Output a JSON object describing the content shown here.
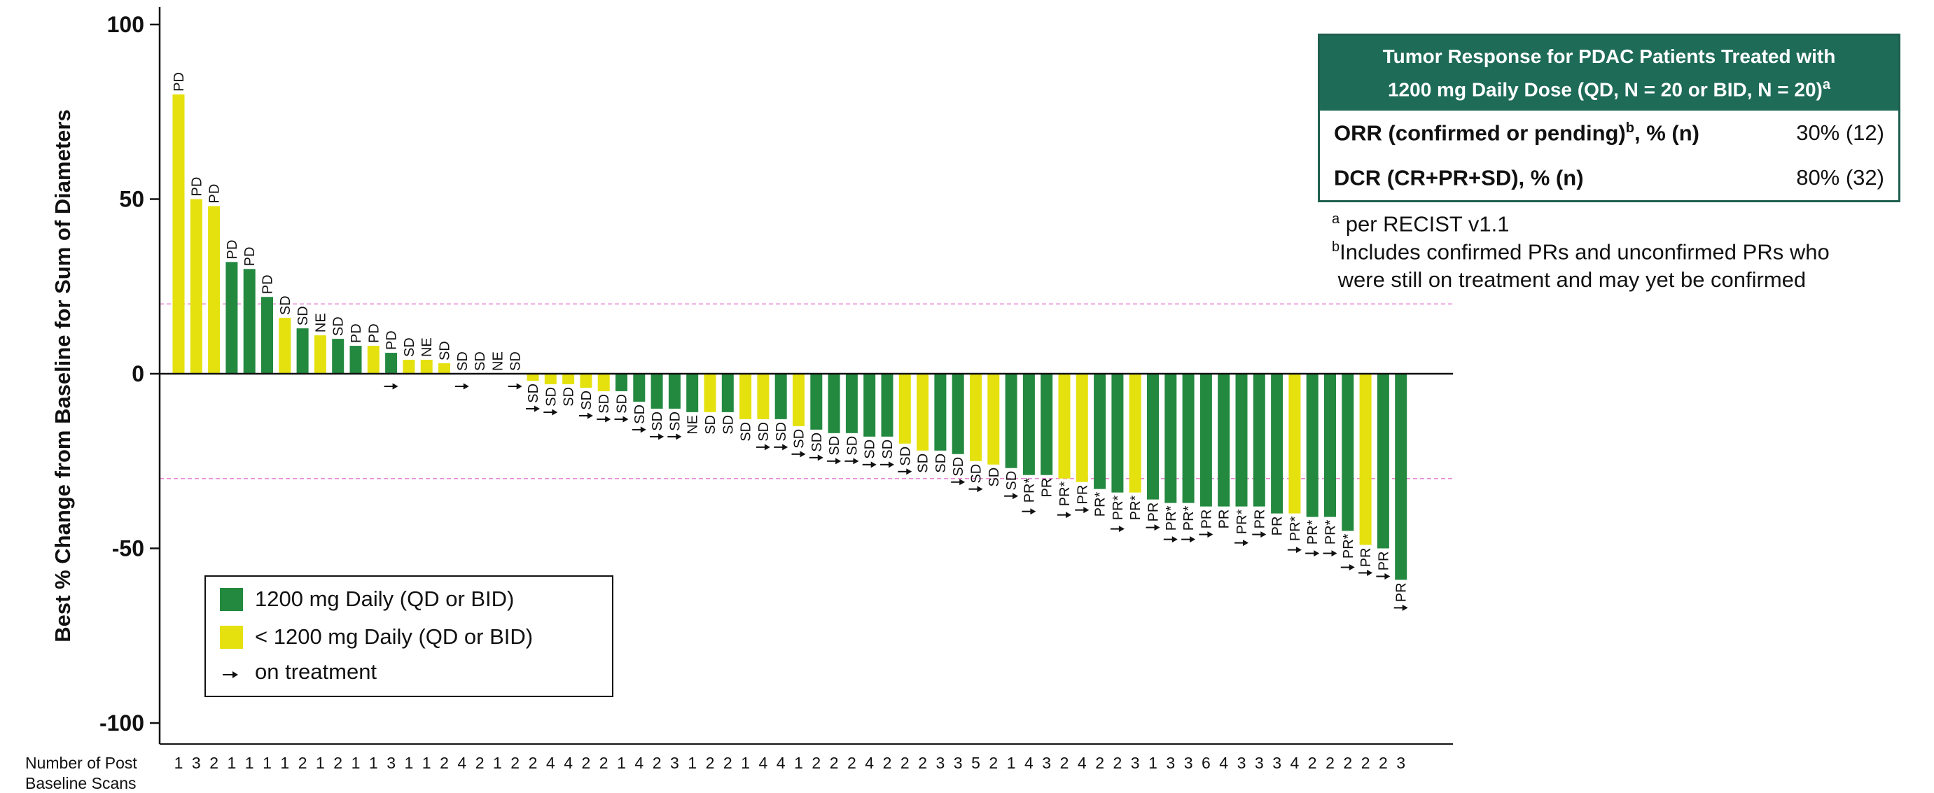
{
  "chart_data": {
    "type": "bar",
    "ylabel": "Best % Change from Baseline for Sum of Diameters",
    "ylim": [
      -100,
      100
    ],
    "yticks": [
      100,
      50,
      0,
      -50,
      -100
    ],
    "reference_lines": [
      20,
      -30
    ],
    "x_row_label_line1": "Number of Post",
    "x_row_label_line2": "Baseline Scans",
    "colors": {
      "group_1200": "#23893f",
      "group_lt1200": "#e5e10e",
      "ref_line": "#e98ad6"
    },
    "groups": {
      "g1200": "1200 mg Daily (QD or BID)",
      "glt1200": "< 1200 mg Daily (QD or BID)"
    },
    "legend": {
      "items": [
        {
          "key": "g1200",
          "label": "1200 mg Daily (QD or BID)"
        },
        {
          "key": "glt1200",
          "label": "< 1200 mg Daily (QD or BID)"
        },
        {
          "key": "arrow",
          "label": "on treatment"
        }
      ]
    },
    "bars": [
      {
        "value": 80,
        "group": "glt1200",
        "response": "PD",
        "scans": "1",
        "on_treatment": false
      },
      {
        "value": 50,
        "group": "glt1200",
        "response": "PD",
        "scans": "3",
        "on_treatment": false
      },
      {
        "value": 48,
        "group": "glt1200",
        "response": "PD",
        "scans": "2",
        "on_treatment": false
      },
      {
        "value": 32,
        "group": "g1200",
        "response": "PD",
        "scans": "1",
        "on_treatment": false
      },
      {
        "value": 30,
        "group": "g1200",
        "response": "PD",
        "scans": "1",
        "on_treatment": false
      },
      {
        "value": 22,
        "group": "g1200",
        "response": "PD",
        "scans": "1",
        "on_treatment": false
      },
      {
        "value": 16,
        "group": "glt1200",
        "response": "SD",
        "scans": "1",
        "on_treatment": false
      },
      {
        "value": 13,
        "group": "g1200",
        "response": "SD",
        "scans": "2",
        "on_treatment": false
      },
      {
        "value": 11,
        "group": "glt1200",
        "response": "NE",
        "scans": "1",
        "on_treatment": false
      },
      {
        "value": 10,
        "group": "g1200",
        "response": "SD",
        "scans": "2",
        "on_treatment": false
      },
      {
        "value": 8,
        "group": "g1200",
        "response": "PD",
        "scans": "1",
        "on_treatment": false
      },
      {
        "value": 8,
        "group": "glt1200",
        "response": "PD",
        "scans": "1",
        "on_treatment": false
      },
      {
        "value": 6,
        "group": "g1200",
        "response": "PD",
        "scans": "3",
        "on_treatment": true
      },
      {
        "value": 4,
        "group": "glt1200",
        "response": "SD",
        "scans": "1",
        "on_treatment": false
      },
      {
        "value": 4,
        "group": "glt1200",
        "response": "NE",
        "scans": "1",
        "on_treatment": false
      },
      {
        "value": 3,
        "group": "glt1200",
        "response": "SD",
        "scans": "2",
        "on_treatment": false
      },
      {
        "value": 0,
        "group": "glt1200",
        "response": "SD",
        "scans": "4",
        "on_treatment": true
      },
      {
        "value": 0,
        "group": "glt1200",
        "response": "SD",
        "scans": "2",
        "on_treatment": false
      },
      {
        "value": 0,
        "group": "glt1200",
        "response": "NE",
        "scans": "1",
        "on_treatment": false
      },
      {
        "value": 0,
        "group": "glt1200",
        "response": "SD",
        "scans": "2",
        "on_treatment": true
      },
      {
        "value": -2,
        "group": "glt1200",
        "response": "SD",
        "scans": "2",
        "on_treatment": true
      },
      {
        "value": -3,
        "group": "glt1200",
        "response": "SD",
        "scans": "4",
        "on_treatment": true
      },
      {
        "value": -3,
        "group": "glt1200",
        "response": "SD",
        "scans": "4",
        "on_treatment": false
      },
      {
        "value": -4,
        "group": "glt1200",
        "response": "SD",
        "scans": "2",
        "on_treatment": true
      },
      {
        "value": -5,
        "group": "glt1200",
        "response": "SD",
        "scans": "2",
        "on_treatment": true
      },
      {
        "value": -5,
        "group": "g1200",
        "response": "SD",
        "scans": "1",
        "on_treatment": true
      },
      {
        "value": -8,
        "group": "g1200",
        "response": "SD",
        "scans": "4",
        "on_treatment": true
      },
      {
        "value": -10,
        "group": "g1200",
        "response": "SD",
        "scans": "2",
        "on_treatment": true
      },
      {
        "value": -10,
        "group": "g1200",
        "response": "SD",
        "scans": "3",
        "on_treatment": true
      },
      {
        "value": -11,
        "group": "g1200",
        "response": "NE",
        "scans": "1",
        "on_treatment": false
      },
      {
        "value": -11,
        "group": "glt1200",
        "response": "SD",
        "scans": "2",
        "on_treatment": false
      },
      {
        "value": -11,
        "group": "g1200",
        "response": "SD",
        "scans": "2",
        "on_treatment": false
      },
      {
        "value": -13,
        "group": "glt1200",
        "response": "SD",
        "scans": "1",
        "on_treatment": false
      },
      {
        "value": -13,
        "group": "glt1200",
        "response": "SD",
        "scans": "4",
        "on_treatment": true
      },
      {
        "value": -13,
        "group": "g1200",
        "response": "SD",
        "scans": "4",
        "on_treatment": true
      },
      {
        "value": -15,
        "group": "glt1200",
        "response": "SD",
        "scans": "1",
        "on_treatment": true
      },
      {
        "value": -16,
        "group": "g1200",
        "response": "SD",
        "scans": "2",
        "on_treatment": true
      },
      {
        "value": -17,
        "group": "g1200",
        "response": "SD",
        "scans": "2",
        "on_treatment": true
      },
      {
        "value": -17,
        "group": "g1200",
        "response": "SD",
        "scans": "2",
        "on_treatment": true
      },
      {
        "value": -18,
        "group": "g1200",
        "response": "SD",
        "scans": "4",
        "on_treatment": true
      },
      {
        "value": -18,
        "group": "g1200",
        "response": "SD",
        "scans": "2",
        "on_treatment": true
      },
      {
        "value": -20,
        "group": "glt1200",
        "response": "SD",
        "scans": "2",
        "on_treatment": true
      },
      {
        "value": -22,
        "group": "glt1200",
        "response": "SD",
        "scans": "2",
        "on_treatment": false
      },
      {
        "value": -22,
        "group": "g1200",
        "response": "SD",
        "scans": "3",
        "on_treatment": false
      },
      {
        "value": -23,
        "group": "g1200",
        "response": "SD",
        "scans": "3",
        "on_treatment": true
      },
      {
        "value": -25,
        "group": "glt1200",
        "response": "SD",
        "scans": "5",
        "on_treatment": true
      },
      {
        "value": -26,
        "group": "glt1200",
        "response": "SD",
        "scans": "2",
        "on_treatment": false
      },
      {
        "value": -27,
        "group": "g1200",
        "response": "SD",
        "scans": "1",
        "on_treatment": true
      },
      {
        "value": -29,
        "group": "g1200",
        "response": "PR*",
        "scans": "4",
        "on_treatment": true
      },
      {
        "value": -29,
        "group": "g1200",
        "response": "PR",
        "scans": "3",
        "on_treatment": false
      },
      {
        "value": -30,
        "group": "glt1200",
        "response": "PR*",
        "scans": "2",
        "on_treatment": true
      },
      {
        "value": -31,
        "group": "glt1200",
        "response": "PR",
        "scans": "4",
        "on_treatment": true
      },
      {
        "value": -33,
        "group": "g1200",
        "response": "PR*",
        "scans": "2",
        "on_treatment": false
      },
      {
        "value": -34,
        "group": "g1200",
        "response": "PR*",
        "scans": "2",
        "on_treatment": true
      },
      {
        "value": -34,
        "group": "glt1200",
        "response": "PR*",
        "scans": "3",
        "on_treatment": false
      },
      {
        "value": -36,
        "group": "g1200",
        "response": "PR",
        "scans": "1",
        "on_treatment": true
      },
      {
        "value": -37,
        "group": "g1200",
        "response": "PR*",
        "scans": "3",
        "on_treatment": true
      },
      {
        "value": -37,
        "group": "g1200",
        "response": "PR*",
        "scans": "3",
        "on_treatment": true
      },
      {
        "value": -38,
        "group": "g1200",
        "response": "PR",
        "scans": "6",
        "on_treatment": true
      },
      {
        "value": -38,
        "group": "g1200",
        "response": "PR",
        "scans": "4",
        "on_treatment": false
      },
      {
        "value": -38,
        "group": "g1200",
        "response": "PR*",
        "scans": "3",
        "on_treatment": true
      },
      {
        "value": -38,
        "group": "g1200",
        "response": "PR",
        "scans": "3",
        "on_treatment": true
      },
      {
        "value": -40,
        "group": "g1200",
        "response": "PR",
        "scans": "3",
        "on_treatment": false
      },
      {
        "value": -40,
        "group": "glt1200",
        "response": "PR*",
        "scans": "4",
        "on_treatment": true
      },
      {
        "value": -41,
        "group": "g1200",
        "response": "PR*",
        "scans": "2",
        "on_treatment": true
      },
      {
        "value": -41,
        "group": "g1200",
        "response": "PR*",
        "scans": "2",
        "on_treatment": true
      },
      {
        "value": -45,
        "group": "g1200",
        "response": "PR*",
        "scans": "2",
        "on_treatment": true
      },
      {
        "value": -49,
        "group": "glt1200",
        "response": "PR",
        "scans": "2",
        "on_treatment": true
      },
      {
        "value": -50,
        "group": "g1200",
        "response": "PR",
        "scans": "2",
        "on_treatment": true
      },
      {
        "value": -59,
        "group": "g1200",
        "response": "PR",
        "scans": "3",
        "on_treatment": true
      }
    ]
  },
  "table": {
    "title_line1": "Tumor Response for PDAC Patients Treated with",
    "title_line2": "1200 mg Daily Dose (QD, N = 20 or BID, N = 20)",
    "title_sup": "a",
    "rows": [
      {
        "label": "ORR (confirmed or pending)",
        "label_sup": "b",
        "label_tail": ", % (n)",
        "value": "30% (12)"
      },
      {
        "label": "DCR (CR+PR+SD), % (n)",
        "label_sup": "",
        "label_tail": "",
        "value": "80% (32)"
      }
    ]
  },
  "footnotes": {
    "a_mark": "a",
    "a_text": "per RECIST v1.1",
    "b_mark": "b",
    "b_text1": "Includes confirmed PRs and unconfirmed PRs who",
    "b_text2": "were still on treatment and may yet be confirmed"
  }
}
